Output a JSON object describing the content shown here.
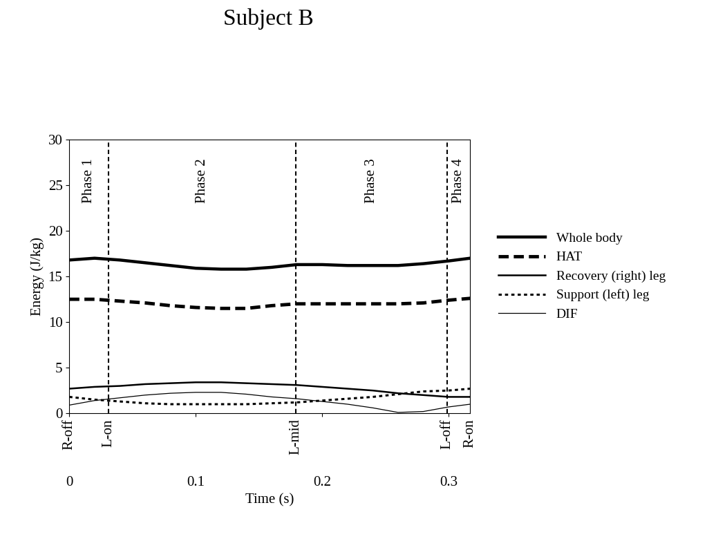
{
  "chart_data": {
    "type": "line",
    "title": "Subject B",
    "x_label": "Time (s)",
    "y_label": "Energy (J/kg)",
    "x": [
      0,
      0.02,
      0.04,
      0.06,
      0.08,
      0.1,
      0.12,
      0.14,
      0.16,
      0.18,
      0.2,
      0.22,
      0.24,
      0.26,
      0.28,
      0.3,
      0.317
    ],
    "series": [
      {
        "name": "Whole body",
        "color": "#000000",
        "line_style": "solid",
        "values": [
          16.8,
          17.0,
          16.8,
          16.5,
          16.2,
          15.9,
          15.8,
          15.8,
          16.0,
          16.3,
          16.3,
          16.2,
          16.2,
          16.2,
          16.4,
          16.7,
          17.0
        ]
      },
      {
        "name": "HAT",
        "color": "#000000",
        "line_style": "dashed",
        "values": [
          12.5,
          12.5,
          12.3,
          12.1,
          11.8,
          11.6,
          11.5,
          11.5,
          11.8,
          12.0,
          12.0,
          12.0,
          12.0,
          12.0,
          12.1,
          12.4,
          12.6
        ]
      },
      {
        "name": "Recovery (right) leg",
        "color": "#000000",
        "line_style": "solid",
        "values": [
          2.7,
          2.9,
          3.0,
          3.2,
          3.3,
          3.4,
          3.4,
          3.3,
          3.2,
          3.1,
          2.9,
          2.7,
          2.5,
          2.2,
          2.0,
          1.8,
          1.8
        ]
      },
      {
        "name": "Support (left) leg",
        "color": "#000000",
        "line_style": "dotted",
        "values": [
          1.8,
          1.5,
          1.3,
          1.1,
          1.0,
          1.0,
          1.0,
          1.0,
          1.1,
          1.2,
          1.4,
          1.6,
          1.8,
          2.1,
          2.4,
          2.5,
          2.7
        ]
      },
      {
        "name": "DIF",
        "color": "#000000",
        "line_style": "solid",
        "values": [
          0.9,
          1.4,
          1.7,
          2.0,
          2.2,
          2.3,
          2.3,
          2.1,
          1.8,
          1.6,
          1.3,
          1.0,
          0.6,
          0.1,
          0.2,
          0.7,
          1.0
        ]
      }
    ],
    "events": [
      {
        "label": "R-off",
        "x": 0
      },
      {
        "label": "L-on",
        "x": 0.031
      },
      {
        "label": "L-mid",
        "x": 0.179
      },
      {
        "label": "L-off",
        "x": 0.299
      },
      {
        "label": "R-on",
        "x": 0.317
      }
    ],
    "phases": [
      "Phase 1",
      "Phase 2",
      "Phase 3",
      "Phase 4"
    ],
    "xlim": [
      0,
      0.317
    ],
    "xticks": [
      0,
      0.1,
      0.2,
      0.3
    ],
    "ylim": [
      0,
      30
    ],
    "yticks": [
      0,
      5,
      10,
      15,
      20,
      25,
      30
    ],
    "legend": "center left",
    "grid": false
  }
}
